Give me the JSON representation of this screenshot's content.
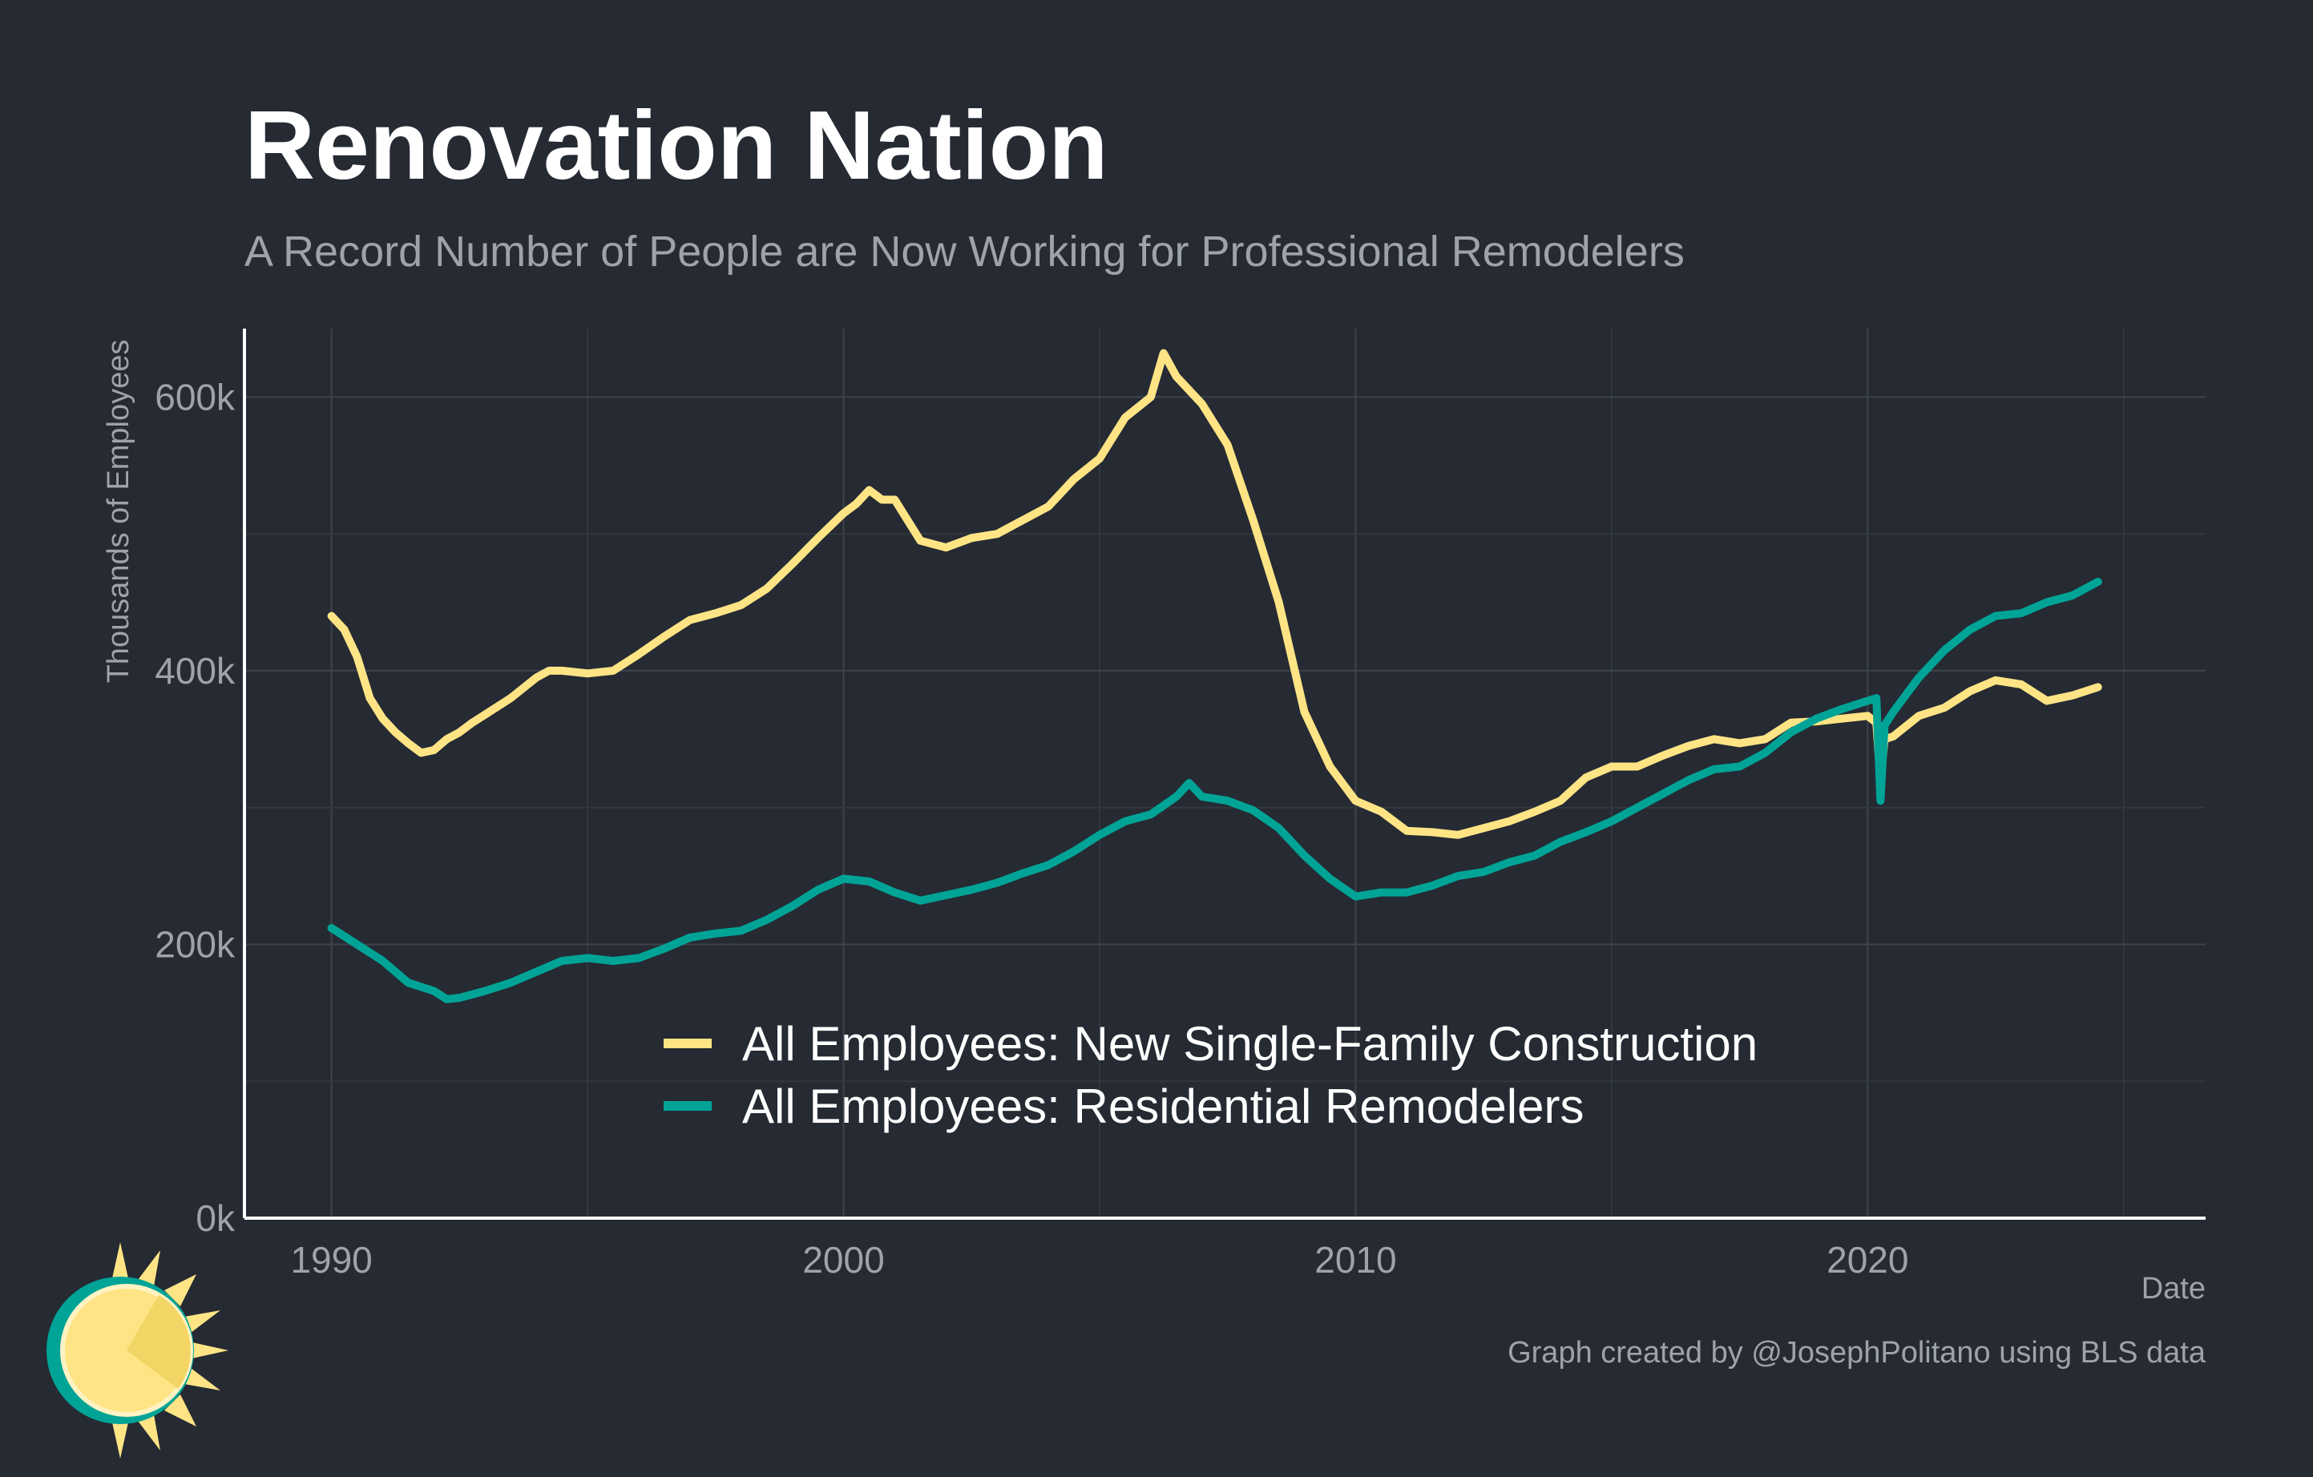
{
  "title": "Renovation Nation",
  "subtitle": "A Record Number of People are Now Working for Professional Remodelers",
  "caption": "Graph created by @JosephPolitano using BLS data",
  "colors": {
    "background": "#252a33",
    "new_single_family": "#ffe485",
    "remodelers": "#00a497",
    "logo_sun": "#ffe485",
    "logo_ring": "#00a497"
  },
  "chart_data": {
    "type": "line",
    "xlabel": "Date",
    "ylabel": "Thousands of Employees",
    "xlim": [
      1988.3,
      2026.6
    ],
    "ylim": [
      0,
      650
    ],
    "x_ticks": [
      1990,
      2000,
      2010,
      2020
    ],
    "x_tick_labels": [
      "1990",
      "2000",
      "2010",
      "2020"
    ],
    "y_ticks": [
      0,
      200,
      400,
      600
    ],
    "y_tick_labels": [
      "0k",
      "200k",
      "400k",
      "600k"
    ],
    "grid": true,
    "legend_position": "bottom-center",
    "series": [
      {
        "name": "All Employees: New Single-Family Construction",
        "color": "#ffe485",
        "x": [
          1990.0,
          1990.25,
          1990.5,
          1990.75,
          1991.0,
          1991.25,
          1991.5,
          1991.75,
          1992.0,
          1992.25,
          1992.5,
          1992.75,
          1993.0,
          1993.5,
          1994.0,
          1994.25,
          1994.5,
          1995.0,
          1995.5,
          1996.0,
          1996.5,
          1997.0,
          1997.5,
          1998.0,
          1998.5,
          1999.0,
          1999.5,
          2000.0,
          2000.25,
          2000.5,
          2000.75,
          2001.0,
          2001.5,
          2002.0,
          2002.5,
          2003.0,
          2003.5,
          2004.0,
          2004.5,
          2005.0,
          2005.5,
          2006.0,
          2006.25,
          2006.5,
          2007.0,
          2007.5,
          2008.0,
          2008.5,
          2009.0,
          2009.5,
          2010.0,
          2010.5,
          2011.0,
          2011.5,
          2012.0,
          2012.5,
          2013.0,
          2013.5,
          2014.0,
          2014.5,
          2015.0,
          2015.5,
          2016.0,
          2016.5,
          2017.0,
          2017.5,
          2018.0,
          2018.5,
          2019.0,
          2019.5,
          2020.0,
          2020.17,
          2020.25,
          2020.33,
          2020.5,
          2021.0,
          2021.5,
          2022.0,
          2022.5,
          2023.0,
          2023.5,
          2024.0,
          2024.5
        ],
        "values": [
          440,
          430,
          410,
          380,
          365,
          355,
          347,
          340,
          342,
          350,
          355,
          362,
          368,
          380,
          395,
          400,
          400,
          398,
          400,
          412,
          425,
          437,
          442,
          448,
          460,
          478,
          497,
          515,
          522,
          532,
          525,
          525,
          495,
          490,
          497,
          500,
          510,
          520,
          540,
          555,
          585,
          600,
          632,
          615,
          595,
          565,
          510,
          450,
          370,
          330,
          305,
          297,
          283,
          282,
          280,
          285,
          290,
          297,
          305,
          322,
          330,
          330,
          338,
          345,
          350,
          347,
          350,
          362,
          363,
          365,
          367,
          362,
          320,
          350,
          352,
          367,
          373,
          385,
          393,
          390,
          378,
          382,
          388
        ]
      },
      {
        "name": "All Employees: Residential Remodelers",
        "color": "#00a497",
        "x": [
          1990.0,
          1990.5,
          1991.0,
          1991.5,
          1992.0,
          1992.25,
          1992.5,
          1993.0,
          1993.5,
          1994.0,
          1994.5,
          1995.0,
          1995.5,
          1996.0,
          1996.5,
          1997.0,
          1997.5,
          1998.0,
          1998.5,
          1999.0,
          1999.5,
          2000.0,
          2000.5,
          2001.0,
          2001.5,
          2002.0,
          2002.5,
          2003.0,
          2003.5,
          2004.0,
          2004.5,
          2005.0,
          2005.5,
          2006.0,
          2006.5,
          2006.75,
          2007.0,
          2007.5,
          2008.0,
          2008.5,
          2009.0,
          2009.5,
          2010.0,
          2010.5,
          2011.0,
          2011.5,
          2012.0,
          2012.5,
          2013.0,
          2013.5,
          2014.0,
          2014.5,
          2015.0,
          2015.5,
          2016.0,
          2016.5,
          2017.0,
          2017.5,
          2018.0,
          2018.5,
          2019.0,
          2019.5,
          2020.0,
          2020.17,
          2020.25,
          2020.33,
          2020.5,
          2021.0,
          2021.5,
          2022.0,
          2022.5,
          2023.0,
          2023.5,
          2024.0,
          2024.5
        ],
        "values": [
          212,
          200,
          188,
          172,
          166,
          160,
          161,
          166,
          172,
          180,
          188,
          190,
          188,
          190,
          197,
          205,
          208,
          210,
          218,
          228,
          240,
          248,
          246,
          238,
          232,
          236,
          240,
          245,
          252,
          258,
          268,
          280,
          290,
          295,
          308,
          318,
          308,
          305,
          298,
          285,
          265,
          248,
          235,
          238,
          238,
          243,
          250,
          253,
          260,
          265,
          275,
          282,
          290,
          300,
          310,
          320,
          328,
          330,
          340,
          355,
          365,
          372,
          378,
          380,
          305,
          360,
          370,
          395,
          415,
          430,
          440,
          442,
          450,
          455,
          465
        ]
      }
    ]
  }
}
